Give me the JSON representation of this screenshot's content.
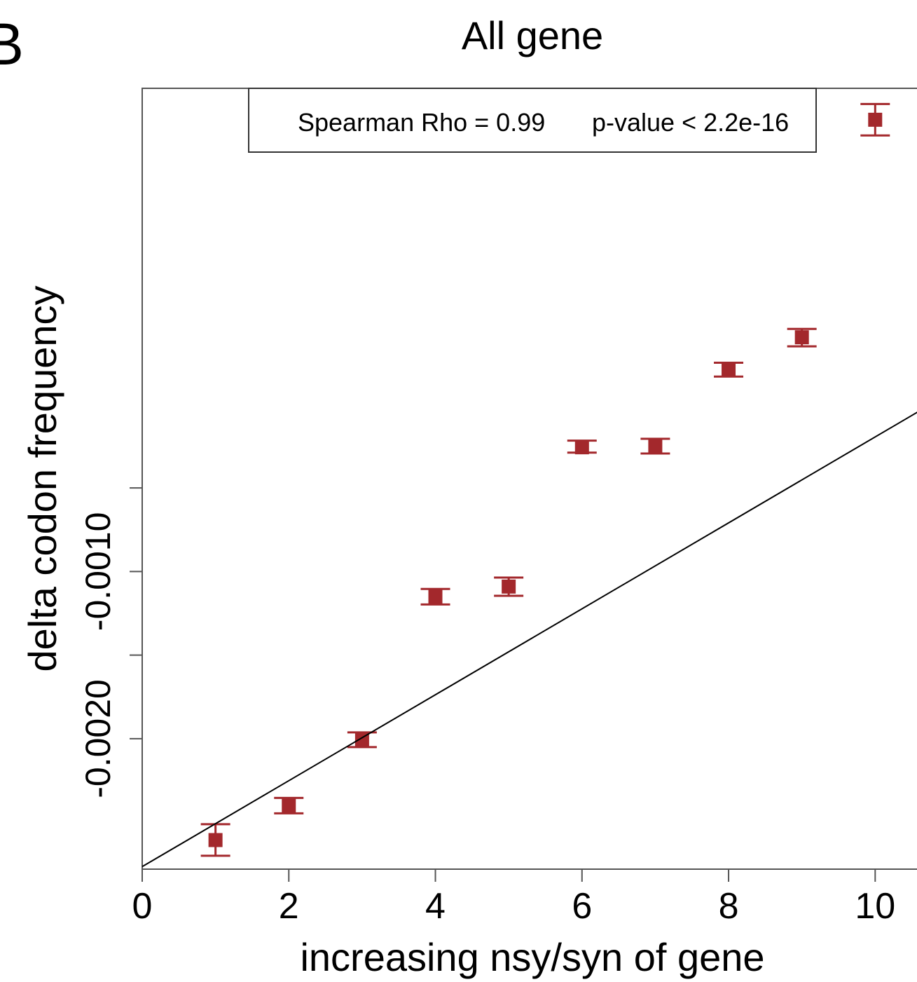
{
  "panel_label": "B",
  "chart_data": {
    "type": "scatter",
    "title": "All gene",
    "xlabel": "increasing nsy/syn of gene",
    "ylabel": "delta codon frequency",
    "xlim": [
      0,
      10.8
    ],
    "ylim": [
      -0.00278,
      0.00189
    ],
    "x_ticks": [
      0,
      2,
      4,
      6,
      8,
      10
    ],
    "x_tick_labels": [
      "0",
      "2",
      "4",
      "6",
      "8",
      "10"
    ],
    "y_ticks": [
      -0.002,
      -0.0015,
      -0.001,
      -0.0005
    ],
    "y_tick_labels": [
      "-0.0020",
      "",
      "-0.0010",
      ""
    ],
    "grid": false,
    "annotation": {
      "rho_text": "Spearman Rho = 0.99",
      "p_text": "p-value < 2.2e-16",
      "placement": "top"
    },
    "marker_color": "#a3282c",
    "fit_line_color": "#000000",
    "fit_line": {
      "slope": 0.000257,
      "intercept": -0.002765
    },
    "series": [
      {
        "x": [
          1,
          2,
          3,
          4,
          5,
          6,
          7,
          8,
          9,
          10
        ],
        "y": [
          -0.002606,
          -0.002401,
          -0.002008,
          -0.00115,
          -0.00109,
          -0.000257,
          -0.000252,
          0.000207,
          0.000401,
          0.001702
        ],
        "err_low": [
          -0.0027,
          -0.002446,
          -0.00205,
          -0.001197,
          -0.001145,
          -0.000289,
          -0.000294,
          0.000166,
          0.000347,
          0.001608
        ],
        "err_high": [
          -0.002511,
          -0.002354,
          -0.001962,
          -0.001104,
          -0.001036,
          -0.000217,
          -0.000206,
          0.000249,
          0.000451,
          0.001796
        ]
      }
    ]
  }
}
